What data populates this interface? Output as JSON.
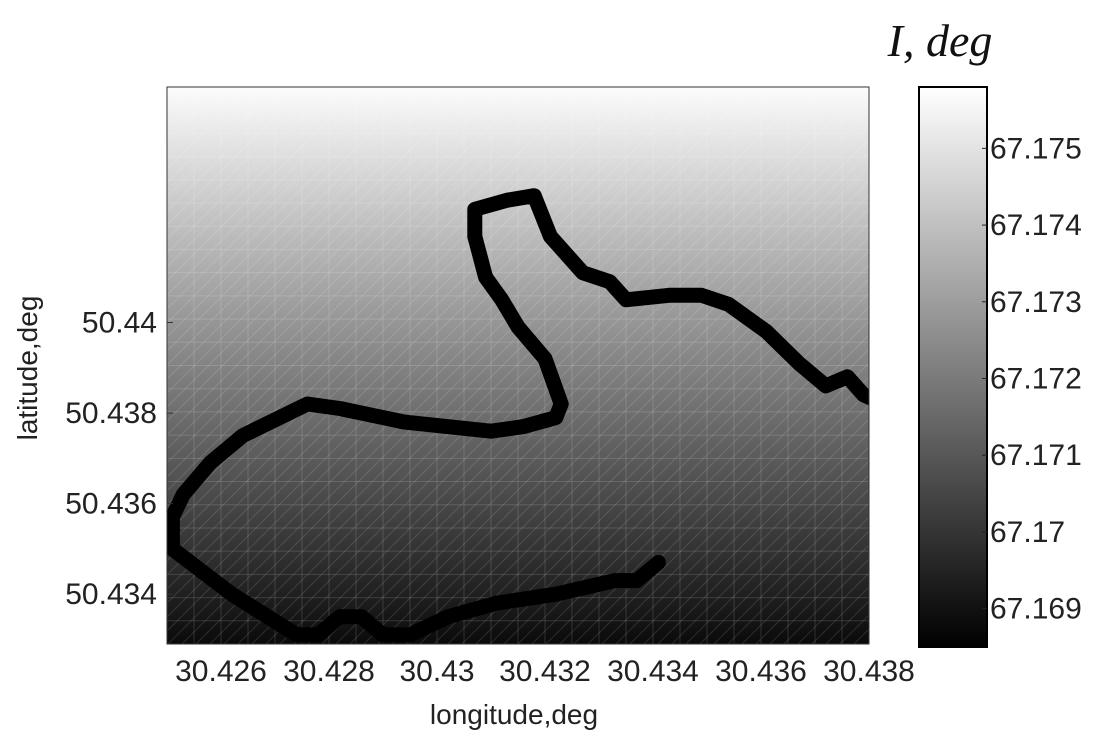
{
  "chart_data": {
    "type": "heatmap",
    "colorbar_title": "I, deg",
    "xlabel": "longitude,deg",
    "ylabel": "latitude,deg",
    "xlim": [
      30.425,
      30.438
    ],
    "ylim": [
      50.4329,
      50.4452
    ],
    "x_ticks": [
      30.426,
      30.428,
      30.43,
      30.432,
      30.434,
      30.436,
      30.438
    ],
    "x_tick_labels": [
      "30.426",
      "30.428",
      "30.43",
      "30.432",
      "30.434",
      "30.436",
      "30.438"
    ],
    "y_ticks": [
      50.434,
      50.436,
      50.438,
      50.44
    ],
    "y_tick_labels": [
      "50.434",
      "50.436",
      "50.438",
      "50.44"
    ],
    "colorbar_range": [
      67.1685,
      67.1758
    ],
    "colorbar_ticks": [
      67.169,
      67.17,
      67.171,
      67.172,
      67.173,
      67.174,
      67.175
    ],
    "colorbar_tick_labels": [
      "67.169",
      "67.17",
      "67.171",
      "67.172",
      "67.173",
      "67.174",
      "67.175"
    ],
    "colormap": "gray",
    "field_gradient": "increasing with latitude",
    "field_value_bottom": 67.1688,
    "field_value_top": 67.1757,
    "grid": true,
    "track": {
      "color": "#000000",
      "points": [
        [
          30.4341,
          50.4347
        ],
        [
          30.4339,
          50.4345
        ],
        [
          30.4337,
          50.4343
        ],
        [
          30.4333,
          50.4343
        ],
        [
          30.4322,
          50.434
        ],
        [
          30.4311,
          50.4338
        ],
        [
          30.4302,
          50.4335
        ],
        [
          30.4295,
          50.4331
        ],
        [
          30.429,
          50.4331
        ],
        [
          30.4286,
          50.4335
        ],
        [
          30.4282,
          50.4335
        ],
        [
          30.4278,
          50.4331
        ],
        [
          30.4274,
          50.4331
        ],
        [
          30.4262,
          50.434
        ],
        [
          30.4251,
          50.435
        ],
        [
          30.4251,
          50.4357
        ],
        [
          30.4253,
          50.4362
        ],
        [
          30.4258,
          50.4369
        ],
        [
          30.4264,
          50.4375
        ],
        [
          30.4276,
          50.4382
        ],
        [
          30.4282,
          50.4381
        ],
        [
          30.4294,
          50.4378
        ],
        [
          30.431,
          50.4376
        ],
        [
          30.4316,
          50.4377
        ],
        [
          30.4322,
          50.4379
        ],
        [
          30.4323,
          50.4382
        ],
        [
          30.432,
          50.4392
        ],
        [
          30.4315,
          50.4399
        ],
        [
          30.4312,
          50.4405
        ],
        [
          30.4309,
          50.441
        ],
        [
          30.4307,
          50.4419
        ],
        [
          30.4307,
          50.4425
        ],
        [
          30.4313,
          50.4427
        ],
        [
          30.4318,
          50.4428
        ],
        [
          30.4321,
          50.4419
        ],
        [
          30.4327,
          50.4411
        ],
        [
          30.4332,
          50.4409
        ],
        [
          30.4335,
          50.4405
        ],
        [
          30.4343,
          50.4406
        ],
        [
          30.4349,
          50.4406
        ],
        [
          30.4354,
          50.4404
        ],
        [
          30.4361,
          50.4398
        ],
        [
          30.4367,
          50.4391
        ],
        [
          30.4372,
          50.4386
        ],
        [
          30.4376,
          50.4388
        ],
        [
          30.4379,
          50.4384
        ],
        [
          30.4381,
          50.4383
        ],
        [
          30.4383,
          50.438
        ],
        [
          30.4384,
          50.4377
        ],
        [
          30.4382,
          50.4376
        ],
        [
          30.4382,
          50.4374
        ]
      ]
    }
  }
}
